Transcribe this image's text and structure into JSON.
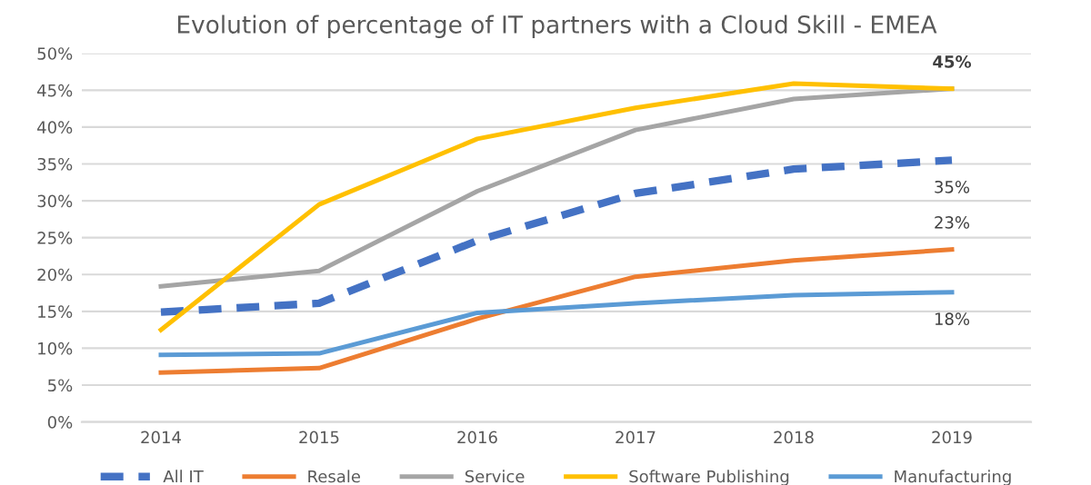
{
  "chart_data": {
    "type": "line",
    "title": "Evolution of percentage of IT partners with a Cloud Skill - EMEA",
    "categories": [
      "2014",
      "2015",
      "2016",
      "2017",
      "2018",
      "2019"
    ],
    "series": [
      {
        "name": "All IT",
        "color": "#4472c4",
        "line_style": "dashed",
        "values": [
          14.9,
          16.1,
          24.6,
          31.0,
          34.3,
          35.5
        ],
        "value_labels": [
          null,
          null,
          null,
          null,
          null,
          "35%"
        ]
      },
      {
        "name": "Resale",
        "color": "#ed7d31",
        "values": [
          6.7,
          7.3,
          14.0,
          19.7,
          21.9,
          23.4
        ],
        "value_labels": [
          null,
          null,
          null,
          null,
          null,
          "23%"
        ]
      },
      {
        "name": "Service",
        "color": "#a5a5a5",
        "values": [
          18.4,
          20.5,
          31.3,
          39.6,
          43.8,
          45.2
        ]
      },
      {
        "name": "Software Publishing",
        "color": "#ffc000",
        "values": [
          12.5,
          29.5,
          38.4,
          42.6,
          45.9,
          45.2
        ],
        "value_labels": [
          null,
          null,
          null,
          null,
          null,
          "45%"
        ]
      },
      {
        "name": "Manufacturing",
        "color": "#5b9bd5",
        "values": [
          9.1,
          9.3,
          14.8,
          16.1,
          17.2,
          17.6
        ],
        "value_labels": [
          null,
          null,
          null,
          null,
          null,
          "18%"
        ]
      }
    ],
    "ylim": [
      0,
      50
    ],
    "yticks": [
      {
        "value": 0,
        "label": "0%"
      },
      {
        "value": 5,
        "label": "5%"
      },
      {
        "value": 10,
        "label": "10%"
      },
      {
        "value": 15,
        "label": "15%"
      },
      {
        "value": 20,
        "label": "20%"
      },
      {
        "value": 25,
        "label": "25%"
      },
      {
        "value": 30,
        "label": "30%"
      },
      {
        "value": 35,
        "label": "35%"
      },
      {
        "value": 40,
        "label": "40%"
      },
      {
        "value": 45,
        "label": "45%"
      },
      {
        "value": 50,
        "label": "50%"
      }
    ],
    "grid": "y",
    "legend": "bottom",
    "marker": "none",
    "line_style": "solid"
  }
}
